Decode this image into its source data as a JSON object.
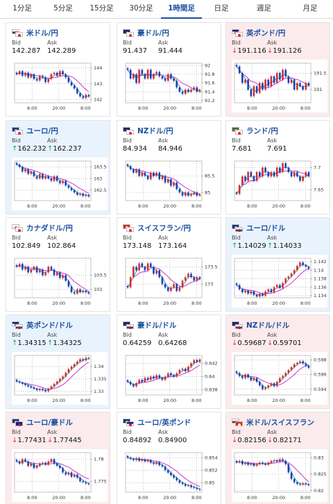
{
  "tabs": [
    {
      "label": "1分足",
      "active": false
    },
    {
      "label": "5分足",
      "active": false
    },
    {
      "label": "15分足",
      "active": false
    },
    {
      "label": "30分足",
      "active": false
    },
    {
      "label": "1時間足",
      "active": true
    },
    {
      "label": "日足",
      "active": false
    },
    {
      "label": "週足",
      "active": false
    },
    {
      "label": "月足",
      "active": false
    }
  ],
  "labels": {
    "bid": "Bid",
    "ask": "Ask"
  },
  "colors": {
    "up_bg": "#e9f3fd",
    "down_bg": "#fcebec",
    "up_arrow": "#1f9d55",
    "down_arrow": "#d93a3a",
    "candle_up": "#d32f2f",
    "candle_down": "#1f3fb4",
    "ma_fast": "#18a5a5",
    "ma_slow": "#c81ec8",
    "title": "#1a4fa0"
  },
  "cards": [
    {
      "pair": "米ドル/円",
      "flags": [
        "us",
        "jp"
      ],
      "trend": "none",
      "arrow": "",
      "bid": "142.287",
      "ask": "142.289",
      "chart_data": {
        "type": "candlestick",
        "x_ticks": [
          "8:00",
          "20:00",
          "8:00"
        ],
        "y_ticks": [
          144,
          143,
          142
        ],
        "ylim": [
          141.8,
          144.3
        ],
        "close": [
          143.6,
          143.8,
          143.5,
          143.7,
          143.4,
          143.6,
          143.3,
          143.2,
          143.5,
          143.4,
          143.1,
          143.3,
          143.6,
          143.7,
          143.5,
          143.8,
          143.6,
          143.4,
          143.1,
          142.9,
          142.7,
          142.4,
          142.2,
          142.1,
          142.3,
          142.2
        ]
      }
    },
    {
      "pair": "豪ドル/円",
      "flags": [
        "au",
        "jp"
      ],
      "trend": "none",
      "arrow": "",
      "bid": "91.437",
      "ask": "91.444",
      "chart_data": {
        "type": "candlestick",
        "x_ticks": [
          "8:00",
          "20:00",
          "8:00"
        ],
        "y_ticks": [
          92,
          91.8,
          91.6,
          91.4,
          91.2
        ],
        "ylim": [
          91.15,
          92.05
        ],
        "close": [
          91.9,
          91.7,
          91.8,
          91.6,
          91.9,
          91.8,
          91.7,
          91.9,
          91.7,
          91.8,
          91.85,
          91.75,
          91.7,
          91.65,
          91.8,
          91.7,
          91.65,
          91.5,
          91.4,
          91.35,
          91.45,
          91.4,
          91.45,
          91.5,
          91.4,
          91.44
        ]
      }
    },
    {
      "pair": "英ポンド/円",
      "flags": [
        "gb",
        "jp"
      ],
      "trend": "down",
      "arrow": "↓",
      "bid": "191.116",
      "ask": "191.126",
      "chart_data": {
        "type": "candlestick",
        "x_ticks": [
          "8:00",
          "20:00",
          "8:00"
        ],
        "y_ticks": [
          191.5,
          191
        ],
        "ylim": [
          190.6,
          191.8
        ],
        "close": [
          191.7,
          191.5,
          191.2,
          191.3,
          191.0,
          190.8,
          191.1,
          190.9,
          191.2,
          191.0,
          191.3,
          191.1,
          191.4,
          191.2,
          191.5,
          191.3,
          191.6,
          191.4,
          191.2,
          191.3,
          191.0,
          191.2,
          191.1,
          191.0,
          191.2,
          191.12
        ]
      }
    },
    {
      "pair": "ユーロ/円",
      "flags": [
        "eu",
        "jp"
      ],
      "trend": "up",
      "arrow": "↑",
      "bid": "162.232",
      "ask": "162.237",
      "chart_data": {
        "type": "candlestick",
        "x_ticks": [
          "8:00",
          "20:00",
          "8:00"
        ],
        "y_ticks": [
          163.5,
          163,
          162.5
        ],
        "ylim": [
          162.05,
          163.75
        ],
        "close": [
          163.6,
          163.5,
          163.3,
          163.4,
          163.2,
          163.3,
          163.1,
          163.0,
          163.2,
          163.0,
          163.1,
          163.0,
          162.9,
          163.1,
          162.9,
          162.8,
          162.9,
          162.7,
          162.6,
          162.5,
          162.4,
          162.3,
          162.35,
          162.25,
          162.3,
          162.23
        ]
      }
    },
    {
      "pair": "NZドル/円",
      "flags": [
        "nz",
        "jp"
      ],
      "trend": "none",
      "arrow": "",
      "bid": "84.934",
      "ask": "84.946",
      "chart_data": {
        "type": "candlestick",
        "x_ticks": [
          "8:00",
          "20:00",
          "8:00"
        ],
        "y_ticks": [
          85.5,
          85
        ],
        "ylim": [
          84.75,
          85.95
        ],
        "close": [
          85.8,
          85.7,
          85.6,
          85.7,
          85.5,
          85.6,
          85.5,
          85.4,
          85.6,
          85.5,
          85.6,
          85.4,
          85.5,
          85.3,
          85.4,
          85.2,
          85.3,
          85.1,
          85.0,
          84.9,
          85.0,
          84.9,
          84.95,
          85.0,
          84.9,
          84.94
        ]
      }
    },
    {
      "pair": "ランド/円",
      "flags": [
        "za",
        "jp"
      ],
      "trend": "none",
      "arrow": "",
      "bid": "7.681",
      "ask": "7.691",
      "chart_data": {
        "type": "candlestick",
        "x_ticks": [
          "8:00",
          "20:00",
          "8:00"
        ],
        "y_ticks": [
          7.7,
          7.65
        ],
        "ylim": [
          7.625,
          7.715
        ],
        "close": [
          7.64,
          7.66,
          7.68,
          7.67,
          7.69,
          7.68,
          7.67,
          7.69,
          7.68,
          7.7,
          7.69,
          7.68,
          7.69,
          7.68,
          7.7,
          7.69,
          7.71,
          7.7,
          7.69,
          7.68,
          7.69,
          7.68,
          7.67,
          7.68,
          7.69,
          7.68
        ]
      }
    },
    {
      "pair": "カナダドル/円",
      "flags": [
        "ca",
        "jp"
      ],
      "trend": "none",
      "arrow": "",
      "bid": "102.849",
      "ask": "102.864",
      "chart_data": {
        "type": "candlestick",
        "x_ticks": [
          "8:00",
          "20:00",
          "8:00"
        ],
        "y_ticks": [
          103.5,
          103
        ],
        "ylim": [
          102.7,
          104.1
        ],
        "close": [
          103.8,
          103.9,
          103.7,
          103.8,
          103.6,
          103.7,
          103.8,
          103.6,
          103.7,
          103.5,
          103.6,
          103.8,
          103.7,
          103.5,
          103.6,
          103.4,
          103.5,
          103.3,
          103.1,
          102.9,
          102.85,
          103.0,
          102.9,
          102.95,
          102.9,
          102.85
        ]
      }
    },
    {
      "pair": "スイスフラン/円",
      "flags": [
        "ch",
        "jp"
      ],
      "trend": "none",
      "arrow": "",
      "bid": "173.148",
      "ask": "173.164",
      "chart_data": {
        "type": "candlestick",
        "x_ticks": [
          "8:00",
          "20:00",
          "8:00"
        ],
        "y_ticks": [
          173.5,
          173
        ],
        "ylim": [
          172.6,
          173.75
        ],
        "close": [
          172.9,
          173.2,
          173.5,
          173.4,
          173.6,
          173.5,
          173.4,
          173.6,
          173.5,
          173.3,
          173.4,
          173.2,
          173.0,
          172.9,
          172.8,
          172.9,
          173.0,
          172.8,
          172.9,
          173.1,
          173.2,
          173.3,
          173.2,
          173.1,
          173.2,
          173.15
        ]
      }
    },
    {
      "pair": "ユーロ/ドル",
      "flags": [
        "eu",
        "us"
      ],
      "trend": "up",
      "arrow": "↑",
      "bid": "1.14029",
      "ask": "1.14033",
      "chart_data": {
        "type": "candlestick",
        "x_ticks": [
          "8:00",
          "20:00",
          "8:00"
        ],
        "y_ticks": [
          1.142,
          1.14,
          1.138,
          1.136,
          1.134
        ],
        "ylim": [
          1.1335,
          1.1428
        ],
        "close": [
          1.1365,
          1.1355,
          1.1348,
          1.1352,
          1.1345,
          1.135,
          1.1342,
          1.1338,
          1.1345,
          1.134,
          1.135,
          1.1355,
          1.1348,
          1.136,
          1.1365,
          1.1358,
          1.137,
          1.138,
          1.1385,
          1.1392,
          1.14,
          1.141,
          1.1418,
          1.1412,
          1.1408,
          1.1403
        ]
      }
    },
    {
      "pair": "英ポンド/ドル",
      "flags": [
        "gb",
        "us"
      ],
      "trend": "up",
      "arrow": "↑",
      "bid": "1.34315",
      "ask": "1.34325",
      "chart_data": {
        "type": "candlestick",
        "x_ticks": [
          "8:00",
          "20:00",
          "8:00"
        ],
        "y_ticks": [
          1.34,
          1.335,
          1.33
        ],
        "ylim": [
          1.3285,
          1.3445
        ],
        "close": [
          1.334,
          1.3335,
          1.333,
          1.3325,
          1.332,
          1.3315,
          1.331,
          1.3305,
          1.331,
          1.3305,
          1.33,
          1.331,
          1.332,
          1.333,
          1.334,
          1.335,
          1.336,
          1.3375,
          1.339,
          1.34,
          1.341,
          1.342,
          1.343,
          1.3425,
          1.3435,
          1.3432
        ]
      }
    },
    {
      "pair": "豪ドル/ドル",
      "flags": [
        "au",
        "us"
      ],
      "trend": "none",
      "arrow": "",
      "bid": "0.64259",
      "ask": "0.64268",
      "chart_data": {
        "type": "candlestick",
        "x_ticks": [
          "8:00",
          "20:00",
          "8:00"
        ],
        "y_ticks": [
          0.642,
          0.64,
          0.638
        ],
        "ylim": [
          0.6372,
          0.6432
        ],
        "close": [
          0.6392,
          0.6388,
          0.6385,
          0.639,
          0.6395,
          0.6392,
          0.6398,
          0.6395,
          0.64,
          0.6397,
          0.6402,
          0.6398,
          0.6395,
          0.64,
          0.6405,
          0.6402,
          0.64,
          0.6405,
          0.641,
          0.6412,
          0.6408,
          0.6415,
          0.642,
          0.6425,
          0.6422,
          0.6426
        ]
      }
    },
    {
      "pair": "NZドル/ドル",
      "flags": [
        "nz",
        "us"
      ],
      "trend": "down",
      "arrow": "↓",
      "bid": "0.59687",
      "ask": "0.59701",
      "chart_data": {
        "type": "candlestick",
        "x_ticks": [
          "8:00",
          "20:00",
          "8:00"
        ],
        "y_ticks": [
          0.598,
          0.596,
          0.594
        ],
        "ylim": [
          0.5932,
          0.5986
        ],
        "close": [
          0.5962,
          0.5958,
          0.5955,
          0.596,
          0.5956,
          0.5952,
          0.5955,
          0.595,
          0.5945,
          0.594,
          0.5942,
          0.5945,
          0.5948,
          0.5944,
          0.595,
          0.5955,
          0.5958,
          0.5962,
          0.5966,
          0.597,
          0.5974,
          0.5976,
          0.5978,
          0.5975,
          0.5972,
          0.5969
        ]
      }
    },
    {
      "pair": "ユーロ/豪ドル",
      "flags": [
        "eu",
        "au"
      ],
      "trend": "down",
      "arrow": "↓",
      "bid": "1.77431",
      "ask": "1.77445",
      "chart_data": {
        "type": "candlestick",
        "x_ticks": [
          "8:00",
          "20:00",
          "8:00"
        ],
        "y_ticks": [
          1.78,
          1.775
        ],
        "ylim": [
          1.7725,
          1.7815
        ],
        "close": [
          1.7795,
          1.779,
          1.78,
          1.7795,
          1.7785,
          1.779,
          1.778,
          1.7785,
          1.779,
          1.7792,
          1.7788,
          1.7795,
          1.78,
          1.779,
          1.7785,
          1.778,
          1.777,
          1.7765,
          1.777,
          1.776,
          1.7765,
          1.7758,
          1.775,
          1.7748,
          1.7745,
          1.7743
        ]
      }
    },
    {
      "pair": "ユーロ/英ポンド",
      "flags": [
        "eu",
        "gb"
      ],
      "trend": "none",
      "arrow": "",
      "bid": "0.84892",
      "ask": "0.84900",
      "chart_data": {
        "type": "candlestick",
        "x_ticks": [
          "8:00",
          "20:00",
          "8:00"
        ],
        "y_ticks": [
          0.854,
          0.852,
          0.85
        ],
        "ylim": [
          0.8485,
          0.8548
        ],
        "close": [
          0.854,
          0.8538,
          0.8536,
          0.8539,
          0.8535,
          0.8537,
          0.8534,
          0.8536,
          0.8532,
          0.853,
          0.8533,
          0.8528,
          0.8526,
          0.852,
          0.8516,
          0.8512,
          0.8508,
          0.8504,
          0.85,
          0.8498,
          0.8495,
          0.8496,
          0.8493,
          0.8492,
          0.849,
          0.8489
        ]
      }
    },
    {
      "pair": "米ドル/スイスフラン",
      "flags": [
        "us",
        "ch"
      ],
      "trend": "down",
      "arrow": "↓",
      "bid": "0.82156",
      "ask": "0.82171",
      "chart_data": {
        "type": "candlestick",
        "x_ticks": [
          "8:00",
          "20:00",
          "8:00"
        ],
        "y_ticks": [
          0.83,
          0.825,
          0.82
        ],
        "ylim": [
          0.8195,
          0.8315
        ],
        "close": [
          0.8285,
          0.829,
          0.828,
          0.8285,
          0.8278,
          0.8282,
          0.8275,
          0.828,
          0.8285,
          0.8282,
          0.8278,
          0.8285,
          0.829,
          0.8292,
          0.8288,
          0.8295,
          0.829,
          0.828,
          0.8255,
          0.8235,
          0.8225,
          0.822,
          0.8218,
          0.8222,
          0.8219,
          0.8216
        ]
      }
    }
  ]
}
